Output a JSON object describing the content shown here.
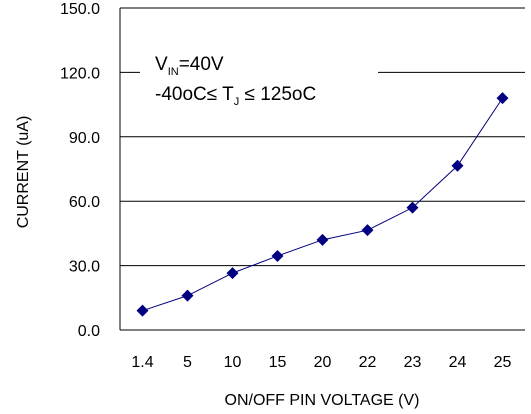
{
  "chart_data": {
    "type": "line",
    "title": "",
    "xlabel": "ON/OFF PIN VOLTAGE (V)",
    "ylabel": "CURRENT (uA)",
    "ylim": [
      0,
      150
    ],
    "yticks": [
      "0.0",
      "30.0",
      "60.0",
      "90.0",
      "120.0",
      "150.0"
    ],
    "categories": [
      "1.4",
      "5",
      "10",
      "15",
      "20",
      "22",
      "23",
      "24",
      "25"
    ],
    "series": [
      {
        "values": [
          9,
          16,
          26.5,
          34.5,
          42,
          46.5,
          57,
          76.5,
          108
        ]
      }
    ],
    "grid": "horizontal",
    "annotation": {
      "line1_main": "V",
      "line1_sub": "IN",
      "line1_rest": "=40V",
      "line2_a": "-40oC≤ T",
      "line2_sub": "J",
      "line2_b": " ≤ 125oC"
    },
    "colors": {
      "line": "#000080",
      "marker": "#000080",
      "grid": "#000000"
    },
    "marker": "diamond"
  }
}
